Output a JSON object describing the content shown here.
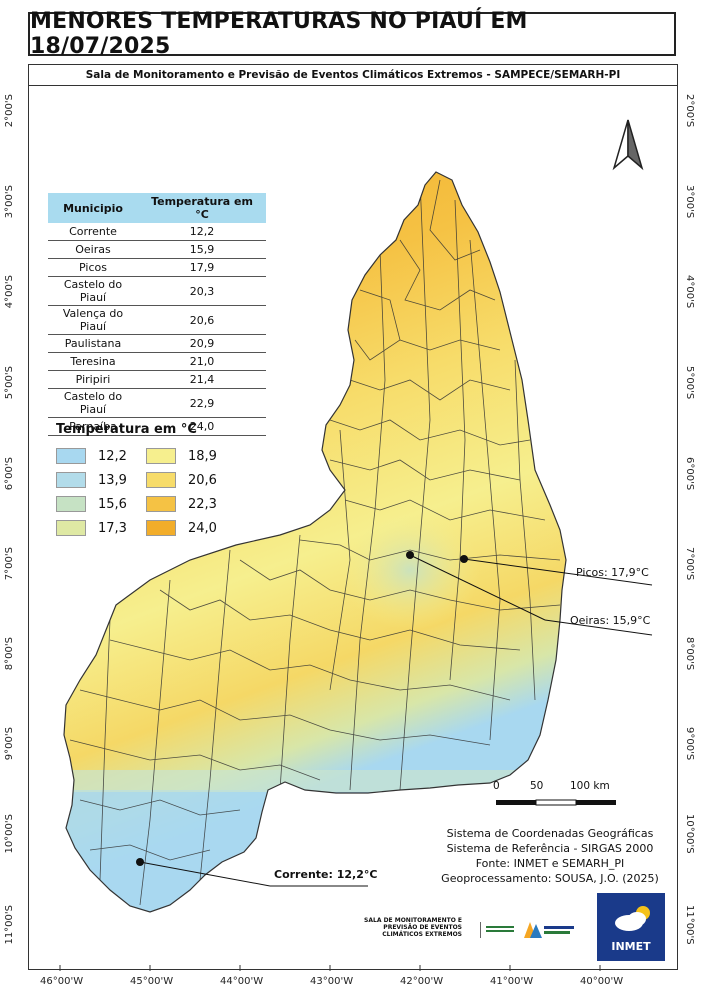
{
  "title": "MENORES TEMPERATURAS NO PIAUÍ EM 18/07/2025",
  "subtitle": "Sala de Monitoramento e Previsão de Eventos Climáticos Extremos - SAMPECE/SEMARH-PI",
  "table": {
    "headers": [
      "Municipio",
      "Temperatura em °C"
    ],
    "rows": [
      [
        "Corrente",
        "12,2"
      ],
      [
        "Oeiras",
        "15,9"
      ],
      [
        "Picos",
        "17,9"
      ],
      [
        "Castelo do Piauí",
        "20,3"
      ],
      [
        "Valença do Piauí",
        "20,6"
      ],
      [
        "Paulistana",
        "20,9"
      ],
      [
        "Teresina",
        "21,0"
      ],
      [
        "Piripiri",
        "21,4"
      ],
      [
        "Castelo do Piauí",
        "22,9"
      ],
      [
        "Parnaíba",
        "24,0"
      ]
    ]
  },
  "legend": {
    "title": "Temperatura em °C",
    "items": [
      {
        "value": "12,2",
        "color": "#a8d8f0"
      },
      {
        "value": "13,9",
        "color": "#b2dcea"
      },
      {
        "value": "15,6",
        "color": "#c6e2c4"
      },
      {
        "value": "17,3",
        "color": "#dfe9a4"
      },
      {
        "value": "18,9",
        "color": "#f6ef8e"
      },
      {
        "value": "20,6",
        "color": "#f7dc6a"
      },
      {
        "value": "22,3",
        "color": "#f5c244"
      },
      {
        "value": "24,0",
        "color": "#f2ad2a"
      }
    ]
  },
  "callouts": {
    "picos": "Picos: 17,9°C",
    "oeiras": "Oeiras: 15,9°C",
    "corrente": "Corrente: 12,2°C"
  },
  "lat_labels": [
    "2°00'S",
    "3°00'S",
    "4°00'S",
    "5°00'S",
    "6°00'S",
    "7°00'S",
    "8°00'S",
    "9°00'S",
    "10°00'S",
    "11°00'S"
  ],
  "lon_labels": [
    "46°00'W",
    "45°00'W",
    "44°00'W",
    "43°00'W",
    "42°00'W",
    "41°00'W",
    "40°00'W"
  ],
  "scale": {
    "labels": [
      "0",
      "50",
      "100 km"
    ]
  },
  "credits": [
    "Sistema de Coordenadas Geográficas",
    "Sistema de Referência - SIRGAS 2000",
    "Fonte: INMET e SEMARH_PI",
    "Geoprocessamento: SOUSA, J.O. (2025)"
  ],
  "logos": {
    "sampece": [
      "SALA DE MONITORAMENTO E",
      "PREVISÃO DE EVENTOS",
      "CLIMÁTICOS EXTREMOS"
    ],
    "inmet": "INMET"
  },
  "north_icon": "north-arrow-icon"
}
